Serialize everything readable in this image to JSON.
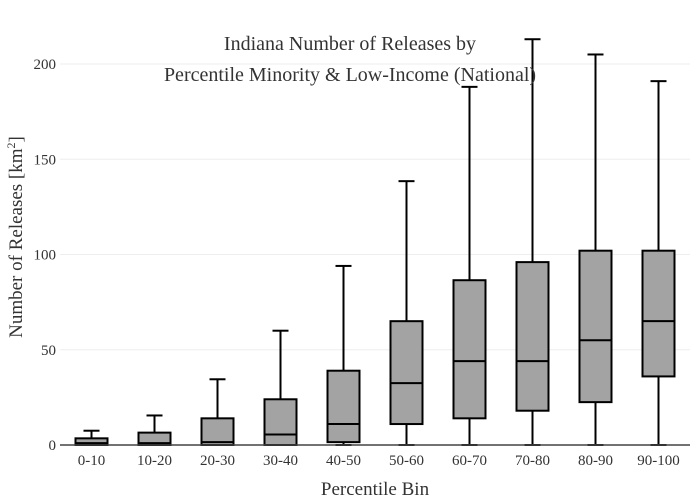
{
  "chart_data": {
    "type": "box",
    "title_lines": [
      "Indiana Number of Releases by",
      "Percentile Minority & Low-Income (National)"
    ],
    "xlabel": "Percentile Bin",
    "ylabel_main": "Number of Releases  [km",
    "ylabel_sup": "2",
    "ylabel_end": "]",
    "ylim": [
      0,
      210
    ],
    "yticks": [
      0,
      50,
      100,
      150,
      200
    ],
    "grid": true,
    "categories": [
      "0-10",
      "10-20",
      "20-30",
      "30-40",
      "40-50",
      "50-60",
      "60-70",
      "70-80",
      "80-90",
      "90-100"
    ],
    "boxes": [
      {
        "min": 0,
        "q1": 0,
        "median": 1,
        "q3": 3.5,
        "max": 7.5
      },
      {
        "min": 0,
        "q1": 0,
        "median": 1,
        "q3": 6.5,
        "max": 15.5
      },
      {
        "min": 0,
        "q1": 0,
        "median": 1.5,
        "q3": 14,
        "max": 34.5
      },
      {
        "min": 0,
        "q1": 0,
        "median": 5.5,
        "q3": 24,
        "max": 60
      },
      {
        "min": 0,
        "q1": 1.5,
        "median": 11,
        "q3": 39,
        "max": 94
      },
      {
        "min": 0,
        "q1": 11,
        "median": 32.5,
        "q3": 65,
        "max": 138.5
      },
      {
        "min": 0,
        "q1": 14,
        "median": 44,
        "q3": 86.5,
        "max": 188
      },
      {
        "min": 0,
        "q1": 18,
        "median": 44,
        "q3": 96,
        "max": 213
      },
      {
        "min": 0,
        "q1": 22.5,
        "median": 55,
        "q3": 102,
        "max": 205
      },
      {
        "min": 0,
        "q1": 36,
        "median": 65,
        "q3": 102,
        "max": 191
      }
    ],
    "colors": {
      "box_fill": "#a3a3a3",
      "stroke": "#000000",
      "grid": "#eeeeee",
      "axis": "#444444"
    }
  }
}
